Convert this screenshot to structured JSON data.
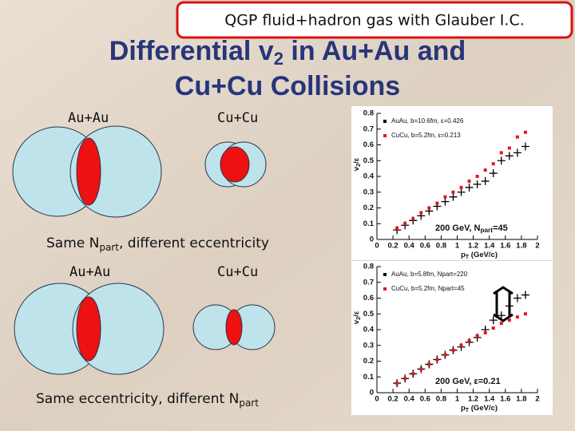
{
  "slide": {
    "banner": "QGP fluid+hadron gas with Glauber I.C.",
    "title": {
      "line1": "Differential v",
      "sub": "2",
      "line1_tail": " in Au+Au and",
      "line2": "Cu+Cu Collisions"
    },
    "top_left_label": "Au+Au",
    "top_right_label": "Cu+Cu",
    "caption1": {
      "main": "Same N",
      "sub": "part",
      "tail": ", different eccentricity"
    },
    "bottom_left_label": "Au+Au",
    "bottom_right_label": "Cu+Cu",
    "caption2": {
      "main": "Same eccentricity, different N",
      "sub": "part"
    }
  },
  "chart_data": [
    {
      "type": "scatter",
      "xlabel": {
        "main": "p",
        "sub": "T",
        "tail": " (GeV/c)"
      },
      "ylabel": {
        "main": "v",
        "sub": "2",
        "tail": "/ε"
      },
      "annotation": {
        "main": "200 GeV, N",
        "sub": "part",
        "tail": "=45"
      },
      "xlim": [
        0,
        2
      ],
      "xticks": [
        0,
        0.2,
        0.4,
        0.6,
        0.8,
        1,
        1.2,
        1.4,
        1.6,
        1.8,
        2
      ],
      "ylim": [
        0,
        0.8
      ],
      "yticks": [
        0,
        0.1,
        0.2,
        0.3,
        0.4,
        0.5,
        0.6,
        0.7,
        0.8
      ],
      "series": [
        {
          "name": "AuAu, b=10.6fm, ε=0.426",
          "color": "#000000",
          "marker": "cross",
          "x": [
            0.25,
            0.35,
            0.45,
            0.55,
            0.65,
            0.75,
            0.85,
            0.95,
            1.05,
            1.15,
            1.25,
            1.35,
            1.45,
            1.55,
            1.65,
            1.75,
            1.85
          ],
          "values": [
            0.06,
            0.09,
            0.12,
            0.15,
            0.18,
            0.21,
            0.24,
            0.27,
            0.3,
            0.33,
            0.35,
            0.37,
            0.42,
            0.5,
            0.53,
            0.55,
            0.59
          ]
        },
        {
          "name": "CuCu, b=5.2fm, ε=0.213",
          "color": "#e8141c",
          "marker": "square",
          "x": [
            0.25,
            0.35,
            0.45,
            0.55,
            0.65,
            0.75,
            0.85,
            0.95,
            1.05,
            1.15,
            1.25,
            1.35,
            1.45,
            1.55,
            1.65,
            1.75,
            1.85
          ],
          "values": [
            0.07,
            0.1,
            0.13,
            0.17,
            0.2,
            0.23,
            0.27,
            0.3,
            0.33,
            0.37,
            0.4,
            0.44,
            0.48,
            0.55,
            0.58,
            0.65,
            0.68
          ]
        }
      ]
    },
    {
      "type": "scatter",
      "xlabel": {
        "main": "p",
        "sub": "T",
        "tail": " (GeV/c)"
      },
      "ylabel": {
        "main": "v",
        "sub": "2",
        "tail": "/ε"
      },
      "annotation": {
        "main": "200 GeV, ε=0.21"
      },
      "xlim": [
        0,
        2
      ],
      "xticks": [
        0,
        0.2,
        0.4,
        0.6,
        0.8,
        1,
        1.2,
        1.4,
        1.6,
        1.8,
        2
      ],
      "ylim": [
        0,
        0.8
      ],
      "yticks": [
        0,
        0.1,
        0.2,
        0.3,
        0.4,
        0.5,
        0.6,
        0.7,
        0.8
      ],
      "series": [
        {
          "name": "AuAu, b=5.8fm, Npart=220",
          "color": "#000000",
          "marker": "cross",
          "x": [
            0.25,
            0.35,
            0.45,
            0.55,
            0.65,
            0.75,
            0.85,
            0.95,
            1.05,
            1.15,
            1.25,
            1.35,
            1.45,
            1.55,
            1.65,
            1.75,
            1.85
          ],
          "values": [
            0.06,
            0.09,
            0.12,
            0.15,
            0.18,
            0.21,
            0.24,
            0.27,
            0.29,
            0.32,
            0.35,
            0.4,
            0.46,
            0.49,
            0.55,
            0.6,
            0.62
          ]
        },
        {
          "name": "CuCu, b=5.2fm, Npart=45",
          "color": "#e8141c",
          "marker": "square",
          "x": [
            0.25,
            0.35,
            0.45,
            0.55,
            0.65,
            0.75,
            0.85,
            0.95,
            1.05,
            1.15,
            1.25,
            1.35,
            1.45,
            1.55,
            1.65,
            1.75,
            1.85
          ],
          "values": [
            0.06,
            0.09,
            0.12,
            0.15,
            0.18,
            0.21,
            0.24,
            0.27,
            0.3,
            0.33,
            0.36,
            0.38,
            0.41,
            0.44,
            0.46,
            0.48,
            0.5
          ]
        }
      ]
    }
  ]
}
